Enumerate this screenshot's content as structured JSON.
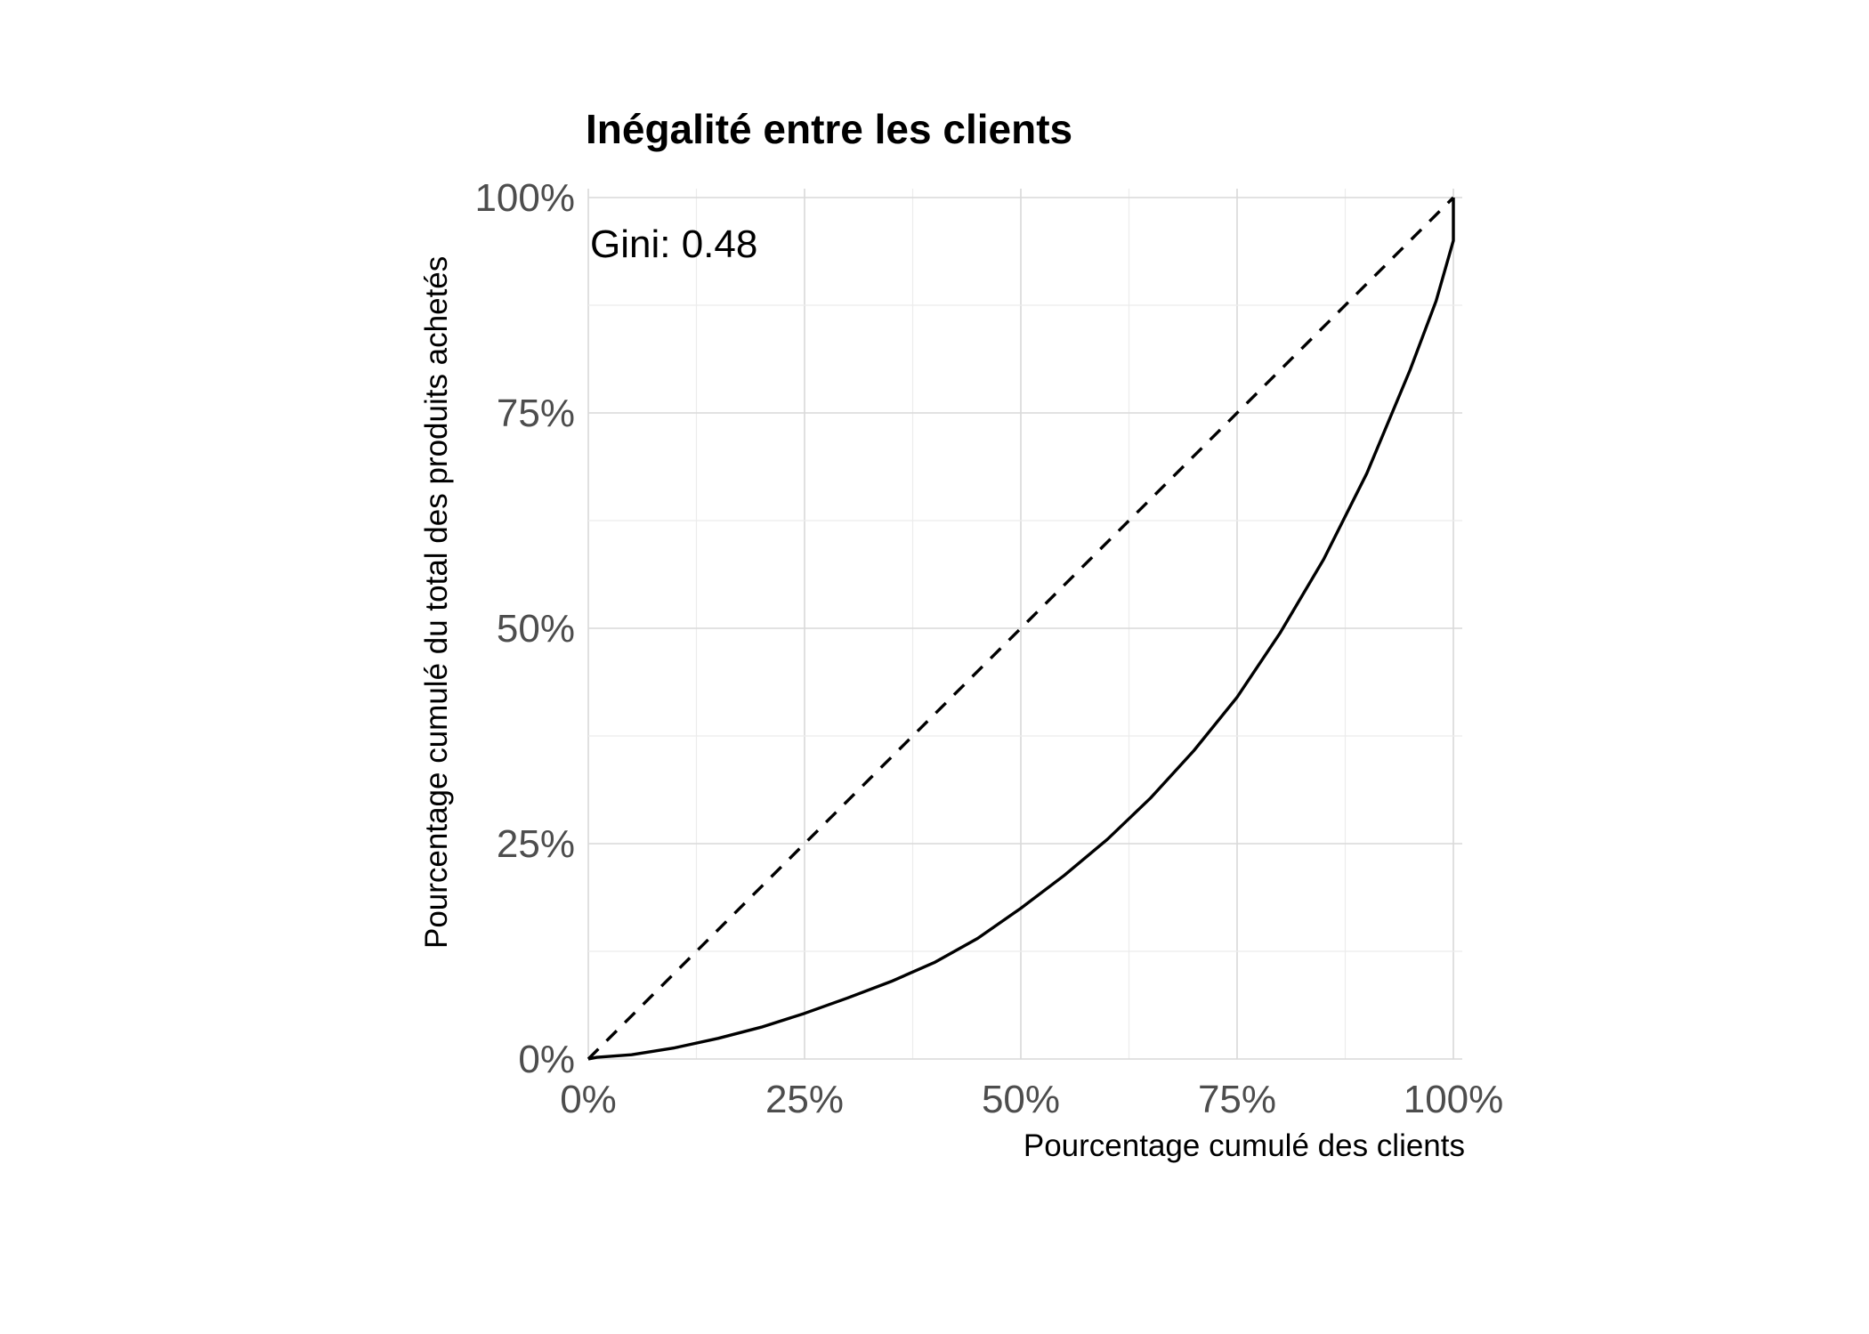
{
  "chart_data": {
    "type": "line",
    "title": "Inégalité entre les clients",
    "xlabel": "Pourcentage cumulé des clients",
    "ylabel": "Pourcentage cumulé du total des produits achetés",
    "xlim": [
      0,
      100
    ],
    "ylim": [
      0,
      100
    ],
    "x_ticks": [
      "0%",
      "25%",
      "50%",
      "75%",
      "100%"
    ],
    "y_ticks": [
      "0%",
      "25%",
      "50%",
      "75%",
      "100%"
    ],
    "grid": true,
    "annotation": "Gini: 0.48",
    "series": [
      {
        "style": "solid",
        "color": "#000000",
        "points": [
          [
            0,
            0
          ],
          [
            1,
            0.2
          ],
          [
            5,
            0.5
          ],
          [
            10,
            1.3
          ],
          [
            15,
            2.4
          ],
          [
            20,
            3.7
          ],
          [
            25,
            5.3
          ],
          [
            30,
            7.1
          ],
          [
            35,
            9.0
          ],
          [
            40,
            11.2
          ],
          [
            45,
            14.0
          ],
          [
            50,
            17.5
          ],
          [
            55,
            21.3
          ],
          [
            60,
            25.5
          ],
          [
            65,
            30.3
          ],
          [
            70,
            35.8
          ],
          [
            75,
            42.0
          ],
          [
            80,
            49.5
          ],
          [
            85,
            58.0
          ],
          [
            90,
            68.0
          ],
          [
            95,
            80.0
          ],
          [
            98,
            88.0
          ],
          [
            100,
            95.0
          ],
          [
            100,
            100
          ]
        ]
      },
      {
        "style": "dashed",
        "color": "#000000",
        "points": [
          [
            0,
            0
          ],
          [
            100,
            100
          ]
        ]
      }
    ]
  }
}
